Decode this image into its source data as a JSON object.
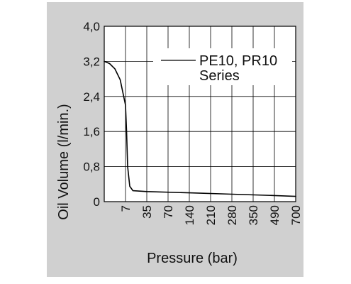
{
  "chart_data": {
    "type": "line",
    "title": "",
    "xlabel": "Pressure (bar)",
    "ylabel": "Oil Volume (l/min.)",
    "x_scale": "categorical",
    "x_ticks": [
      "7",
      "35",
      "70",
      "140",
      "210",
      "280",
      "350",
      "490",
      "700"
    ],
    "y_ticks": [
      "0",
      "0,8",
      "1,6",
      "2,4",
      "3,2",
      "4,0"
    ],
    "ylim": [
      0,
      4.0
    ],
    "grid": true,
    "legend": {
      "placement": "top-right",
      "lines": [
        "PE10, PR10",
        "Series"
      ]
    },
    "series": [
      {
        "name": "PE10, PR10 Series",
        "points": [
          {
            "x_index": 0.0,
            "y": 3.2
          },
          {
            "x_index": 0.25,
            "y": 3.15
          },
          {
            "x_index": 0.5,
            "y": 3.03
          },
          {
            "x_index": 0.75,
            "y": 2.78
          },
          {
            "x_index": 1.0,
            "y": 2.2
          },
          {
            "x_index": 1.05,
            "y": 1.6
          },
          {
            "x_index": 1.1,
            "y": 0.8
          },
          {
            "x_index": 1.2,
            "y": 0.35
          },
          {
            "x_index": 1.35,
            "y": 0.25
          },
          {
            "x_index": 2.0,
            "y": 0.23
          },
          {
            "x_index": 4.0,
            "y": 0.2
          },
          {
            "x_index": 6.0,
            "y": 0.17
          },
          {
            "x_index": 8.0,
            "y": 0.14
          },
          {
            "x_index": 9.0,
            "y": 0.12
          }
        ]
      }
    ]
  },
  "colors": {
    "panel_background": "#d0d0d0",
    "plot_background": "#ffffff",
    "grid": "#000000",
    "series_line": "#000000",
    "text": "#111111"
  }
}
